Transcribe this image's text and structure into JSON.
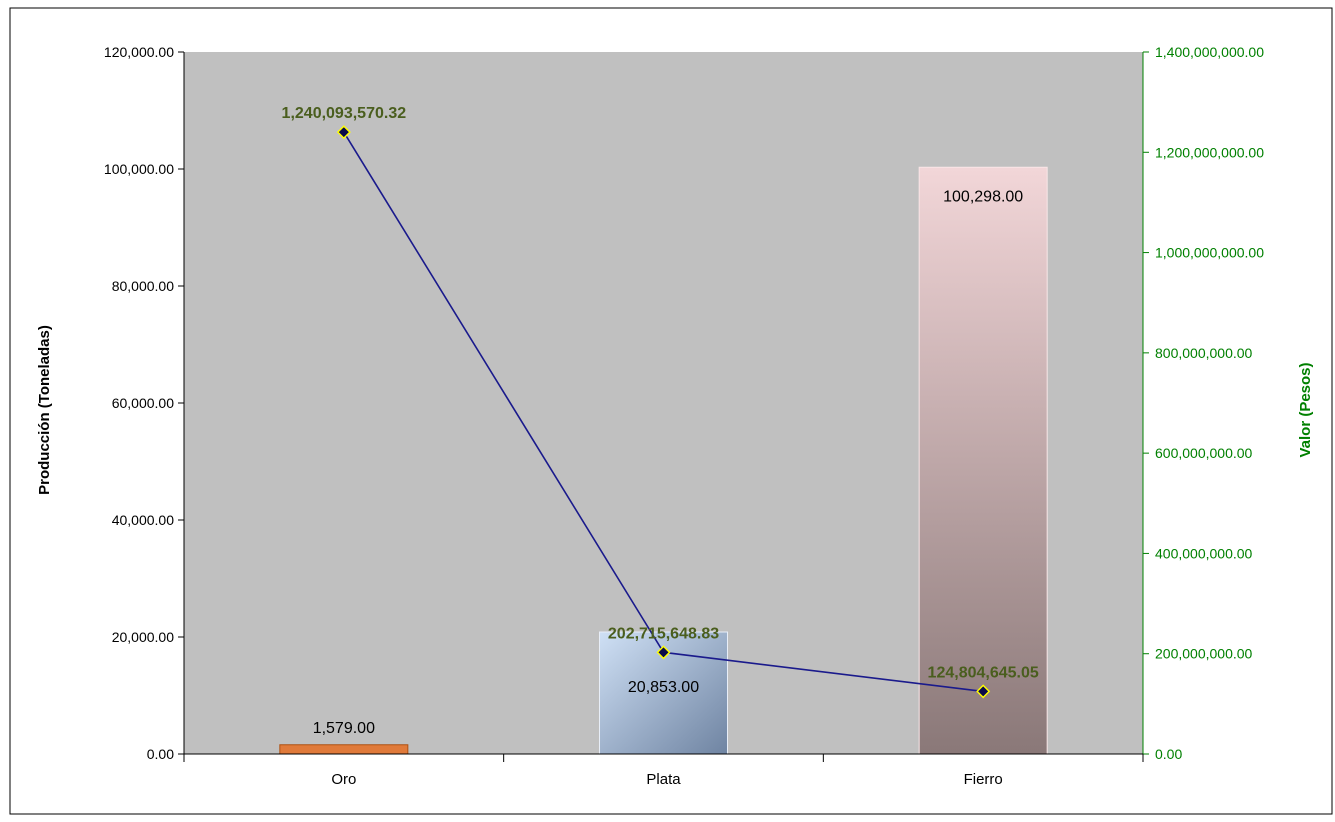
{
  "colors": {
    "plot_bg": "#c0c0c0",
    "line": "#1a1a8c",
    "marker_fill": "#0a0a4a",
    "marker_stroke": "#ffff00",
    "line_label": "#4a5e1e",
    "right_axis": "#008000",
    "oro_bar": "#e07a3a",
    "plata_bar_light": "#cfe0f5",
    "plata_bar_dark": "#6f84a2",
    "fierro_bar_light": "#f2d6d8",
    "fierro_bar_dark": "#8a7878"
  },
  "chart_data": {
    "type": "bar",
    "categories": [
      "Oro",
      "Plata",
      "Fierro"
    ],
    "ylabel": "Producción (Toneladas)",
    "y2label": "Valor (Pesos)",
    "ylim": [
      0,
      120000
    ],
    "y2lim": [
      0,
      1400000000
    ],
    "yticks": [
      "0.00",
      "20,000.00",
      "40,000.00",
      "60,000.00",
      "80,000.00",
      "100,000.00",
      "120,000.00"
    ],
    "y2ticks": [
      "0.00",
      "200,000,000.00",
      "400,000,000.00",
      "600,000,000.00",
      "800,000,000.00",
      "1,000,000,000.00",
      "1,200,000,000.00",
      "1,400,000,000.00"
    ],
    "grid": false,
    "series": [
      {
        "type": "bar",
        "axis": "left",
        "values": [
          1579,
          20853,
          100298
        ],
        "labels": [
          "1,579.00",
          "20,853.00",
          "100,298.00"
        ]
      },
      {
        "type": "line",
        "axis": "right",
        "values": [
          1240093570.32,
          202715648.83,
          124804645.05
        ],
        "labels": [
          "1,240,093,570.32",
          "202,715,648.83",
          "124,804,645.05"
        ]
      }
    ]
  }
}
